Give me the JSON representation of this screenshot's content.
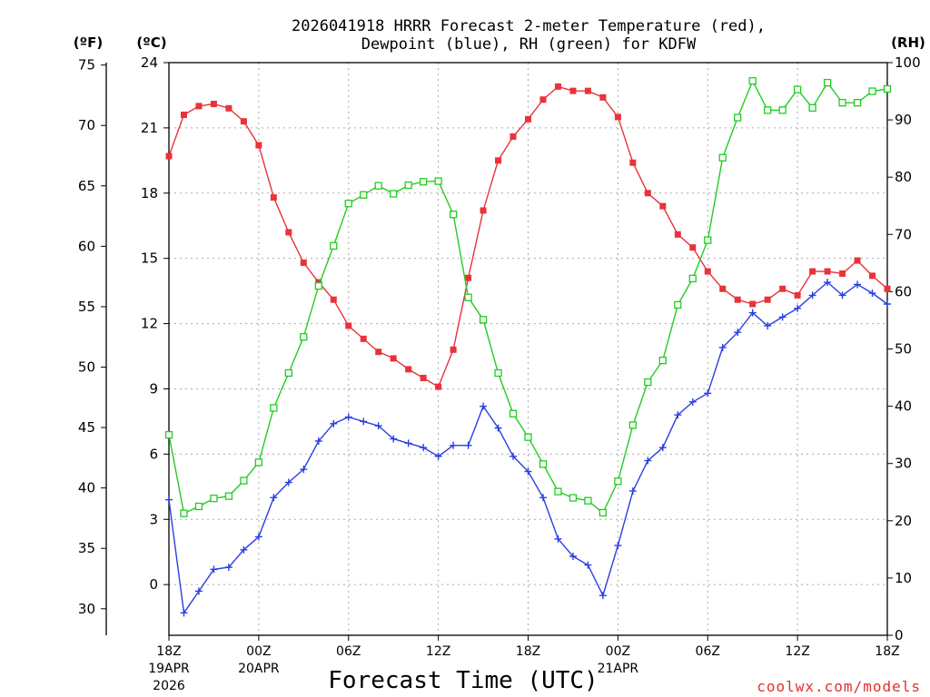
{
  "chart_data": {
    "type": "line",
    "title_line1": "2026041918 HRRR Forecast 2-meter Temperature (red),",
    "title_line2": "Dewpoint (blue), RH (green) for KDFW",
    "xlabel": "Forecast Time (UTC)",
    "credit": "coolwx.com/models",
    "unit_f": "(ºF)",
    "unit_c": "(ºC)",
    "unit_rh": "(RH)",
    "ylim_c": [
      -2.33,
      24
    ],
    "ylim_rh": [
      0,
      100
    ],
    "celsius_ticks": [
      "24",
      "21",
      "18",
      "15",
      "12",
      "9",
      "6",
      "3",
      "0"
    ],
    "fahrenheit_ticks": [
      "75",
      "70",
      "65",
      "60",
      "55",
      "50",
      "45",
      "40",
      "35",
      "30"
    ],
    "rh_ticks": [
      "100",
      "90",
      "80",
      "70",
      "60",
      "50",
      "40",
      "30",
      "20",
      "10",
      "0"
    ],
    "x_ticks": [
      {
        "hour": 0,
        "label": "18Z",
        "sub1": "19APR",
        "sub2": "2026"
      },
      {
        "hour": 6,
        "label": "00Z",
        "sub1": "20APR",
        "sub2": ""
      },
      {
        "hour": 12,
        "label": "06Z",
        "sub1": "",
        "sub2": ""
      },
      {
        "hour": 18,
        "label": "12Z",
        "sub1": "",
        "sub2": ""
      },
      {
        "hour": 24,
        "label": "18Z",
        "sub1": "",
        "sub2": ""
      },
      {
        "hour": 30,
        "label": "00Z",
        "sub1": "21APR",
        "sub2": ""
      },
      {
        "hour": 36,
        "label": "06Z",
        "sub1": "",
        "sub2": ""
      },
      {
        "hour": 42,
        "label": "12Z",
        "sub1": "",
        "sub2": ""
      },
      {
        "hour": 48,
        "label": "18Z",
        "sub1": "",
        "sub2": ""
      }
    ],
    "series": [
      {
        "name": "Temperature (°C)",
        "color": "#e8333a",
        "marker": "filled-square",
        "axis": "celsius",
        "values": [
          19.7,
          21.6,
          22.0,
          22.1,
          21.9,
          21.3,
          20.2,
          17.8,
          16.2,
          14.8,
          13.9,
          13.1,
          11.9,
          11.3,
          10.7,
          10.4,
          9.9,
          9.5,
          9.1,
          10.8,
          14.1,
          17.2,
          19.5,
          20.6,
          21.4,
          22.3,
          22.9,
          22.7,
          22.7,
          22.4,
          21.5,
          19.4,
          18.0,
          17.4,
          16.1,
          15.5,
          14.4,
          13.6,
          13.1,
          12.9,
          13.1,
          13.6,
          13.3,
          14.4,
          14.4,
          14.3,
          14.9,
          14.2,
          13.6
        ]
      },
      {
        "name": "Dewpoint (°C)",
        "color": "#2a3ee0",
        "marker": "plus",
        "axis": "celsius",
        "values": [
          3.9,
          -1.3,
          -0.3,
          0.7,
          0.8,
          1.6,
          2.2,
          4.0,
          4.7,
          5.3,
          6.6,
          7.4,
          7.7,
          7.5,
          7.3,
          6.7,
          6.5,
          6.3,
          5.9,
          6.4,
          6.4,
          8.2,
          7.2,
          5.9,
          5.2,
          4.0,
          2.1,
          1.3,
          0.9,
          -0.5,
          1.8,
          4.3,
          5.7,
          6.3,
          7.8,
          8.4,
          8.8,
          10.9,
          11.6,
          12.5,
          11.9,
          12.3,
          12.7,
          13.3,
          13.9,
          13.3,
          13.8,
          13.4,
          12.9
        ]
      },
      {
        "name": "RH (%)",
        "color": "#22cc22",
        "marker": "open-square",
        "axis": "rh",
        "values": [
          35,
          21.3,
          22.5,
          23.9,
          24.3,
          27.0,
          30.2,
          39.7,
          45.8,
          52.1,
          61.0,
          68.0,
          75.4,
          76.9,
          78.5,
          77.1,
          78.6,
          79.2,
          79.3,
          73.5,
          59.0,
          55.1,
          45.8,
          38.7,
          34.6,
          29.9,
          25.1,
          24.0,
          23.5,
          21.4,
          26.9,
          36.7,
          44.2,
          48.0,
          57.7,
          62.3,
          69.0,
          83.4,
          90.4,
          96.8,
          91.7,
          91.7,
          95.3,
          92.1,
          96.5,
          93.0,
          93.0,
          95.0,
          95.4
        ]
      }
    ]
  }
}
